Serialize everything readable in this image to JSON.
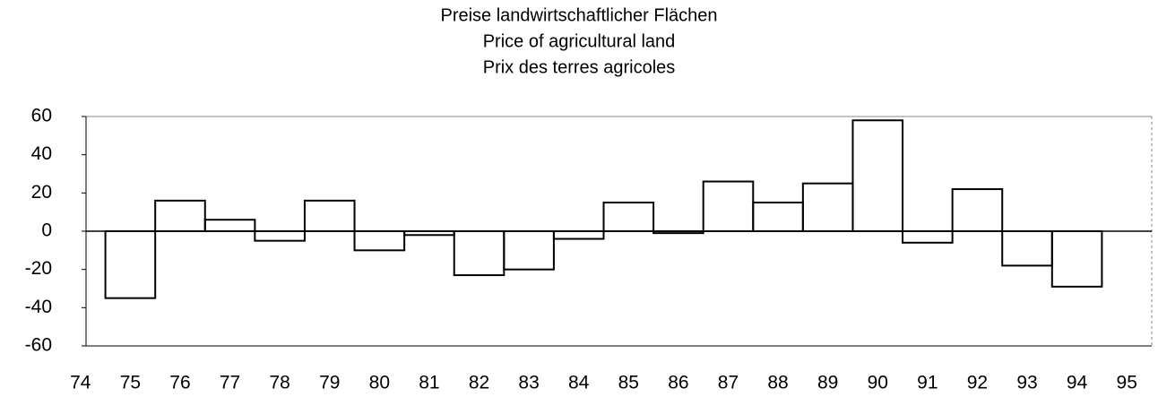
{
  "chart_data": {
    "type": "bar",
    "title": [
      "Preise landwirtschaftlicher Flächen",
      "Price of agricultural land",
      "Prix des terres agricoles"
    ],
    "categories": [
      "74",
      "75",
      "76",
      "77",
      "78",
      "79",
      "80",
      "81",
      "82",
      "83",
      "84",
      "85",
      "86",
      "87",
      "88",
      "89",
      "90",
      "91",
      "92",
      "93",
      "94",
      "95"
    ],
    "values": [
      null,
      -35,
      16,
      6,
      -5,
      16,
      -10,
      -2,
      -23,
      -20,
      -4,
      15,
      -1,
      26,
      15,
      25,
      58,
      -6,
      22,
      -18,
      -29,
      0
    ],
    "color": "#000000",
    "ylim": [
      -60,
      60
    ],
    "yticks": [
      -60,
      -40,
      -20,
      0,
      20,
      40,
      60
    ],
    "grid": false
  }
}
